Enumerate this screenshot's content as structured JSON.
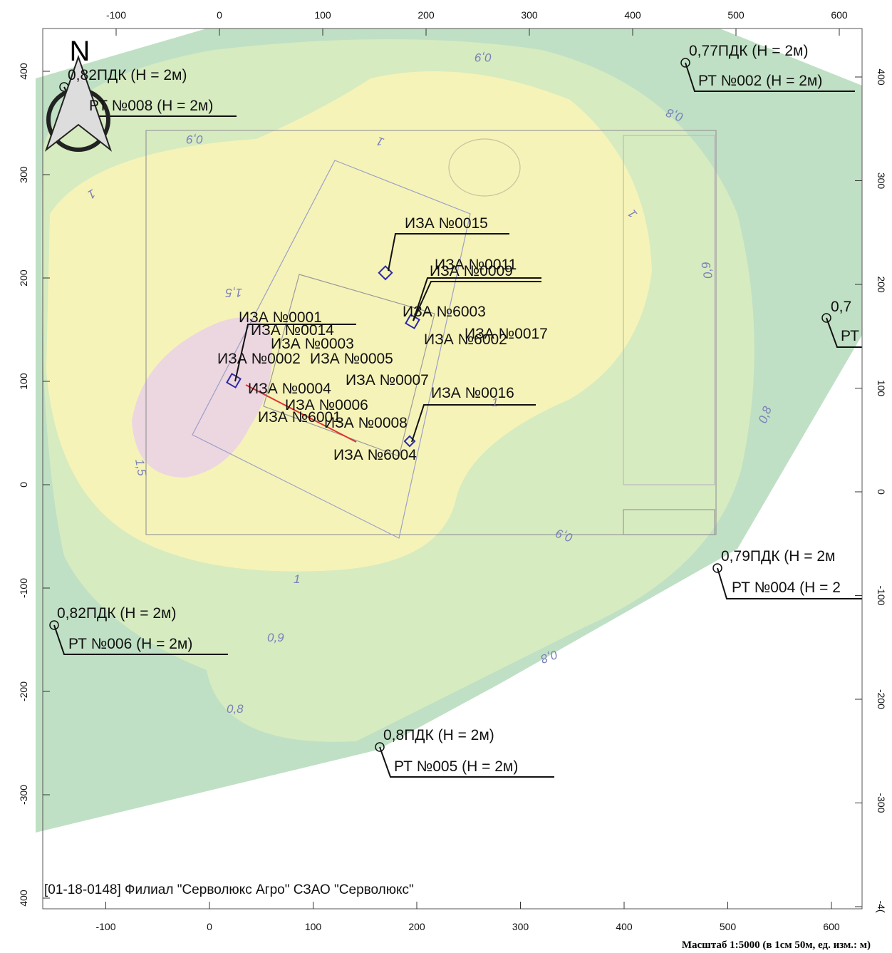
{
  "map": {
    "north": "N",
    "footer": "[01-18-0148] Филиал \"Серволюкс Агро\" СЗАО \"Серволюкс\"",
    "scale": "Масштаб 1:5000 (в 1см 50м, ед. изм.: м)"
  },
  "axes": {
    "top": [
      -100,
      0,
      100,
      200,
      300,
      400,
      500,
      600
    ],
    "bottom": [
      -100,
      0,
      100,
      200,
      300,
      400,
      500,
      600
    ],
    "left": [
      400,
      300,
      200,
      100,
      0,
      -100,
      -200,
      -300,
      {
        "value": -400,
        "label": "400"
      }
    ],
    "right": [
      400,
      300,
      200,
      100,
      0,
      -100,
      -200,
      -300,
      {
        "value": -400,
        "label": "-4("
      }
    ]
  },
  "receptors": [
    {
      "value": "0,82ПДК (Н = 2м)",
      "label": "РТ №008 (Н = 2м)"
    },
    {
      "value": "0,77ПДК (Н = 2м)",
      "label": "РТ №002 (Н = 2м)"
    },
    {
      "value": "0,7",
      "label": "РТ"
    },
    {
      "value": "0,79ПДК (Н = 2м",
      "label": "РТ №004 (Н = 2"
    },
    {
      "value": "0,82ПДК (Н = 2м)",
      "label": "РТ №006 (Н = 2м)"
    },
    {
      "value": "0,8ПДК (Н = 2м)",
      "label": "РТ №005 (Н = 2м)"
    }
  ],
  "sources": [
    "ИЗА №0015",
    "ИЗА №0011",
    "ИЗА №0009",
    "ИЗА №6003",
    "ИЗА №6002",
    "ИЗА №0017",
    "ИЗА №0001",
    "ИЗА №0014",
    "ИЗА №0003",
    "ИЗА №0002",
    "ИЗА №0005",
    "ИЗА №0007",
    "ИЗА №0004",
    "ИЗА №0016",
    "ИЗА №0006",
    "ИЗА №6001",
    "ИЗА №0008",
    "ИЗА №6004"
  ],
  "contour_labels": [
    "0,9",
    "0,8",
    "1",
    "0,9",
    "1",
    "1",
    "0,9",
    "1,5",
    "0,8",
    "1",
    "1,5",
    "0,9",
    "1",
    "0,9",
    "0,8",
    "0,8"
  ]
}
